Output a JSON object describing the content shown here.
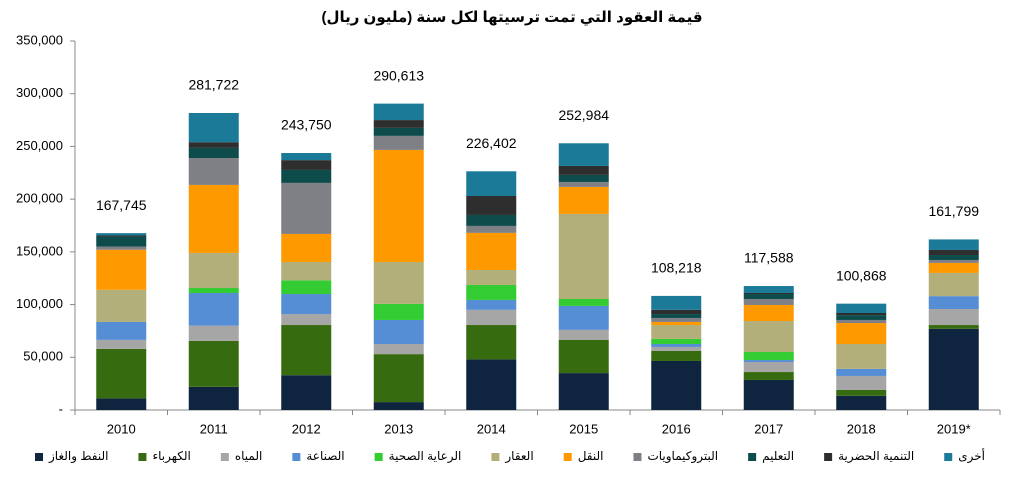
{
  "chart_data": {
    "type": "stacked_bar",
    "title": "قيمة العقود التي تمت ترسيتها لكل سنة (مليون ريال)",
    "categories": [
      "2010",
      "2011",
      "2012",
      "2013",
      "2014",
      "2015",
      "2016",
      "2017",
      "2018",
      "2019*"
    ],
    "ylim": [
      0,
      350000
    ],
    "yticks": [
      {
        "value": 0,
        "label": "-"
      },
      {
        "value": 50000,
        "label": "50,000"
      },
      {
        "value": 100000,
        "label": "100,000"
      },
      {
        "value": 150000,
        "label": "150,000"
      },
      {
        "value": 200000,
        "label": "200,000"
      },
      {
        "value": 250000,
        "label": "250,000"
      },
      {
        "value": 300000,
        "label": "300,000"
      },
      {
        "value": 350000,
        "label": "350,000"
      }
    ],
    "grid": false,
    "legend": "bottom",
    "totals": [
      167745,
      281722,
      243750,
      290613,
      226402,
      252984,
      108218,
      117588,
      100868,
      161799
    ],
    "total_labels": [
      "167,745",
      "281,722",
      "243,750",
      "290,613",
      "226,402",
      "252,984",
      "108,218",
      "117,588",
      "100,868",
      "161,799"
    ],
    "series": [
      {
        "name": "النفط والغاز",
        "color": "#0f243e",
        "values": [
          11000,
          22000,
          33000,
          7500,
          48000,
          35000,
          46500,
          28500,
          13500,
          77000
        ]
      },
      {
        "name": "الكهرباء",
        "color": "#376b0f",
        "values": [
          47000,
          43500,
          47600,
          45500,
          32600,
          31400,
          9500,
          7500,
          5500,
          3600
        ]
      },
      {
        "name": "المياه",
        "color": "#a6a6a6",
        "values": [
          8500,
          14500,
          10400,
          9600,
          14400,
          9600,
          3800,
          9500,
          13300,
          15200
        ]
      },
      {
        "name": "الصناعة",
        "color": "#558ed5",
        "values": [
          17000,
          31000,
          19000,
          22800,
          9400,
          22700,
          2800,
          1900,
          6700,
          12200
        ]
      },
      {
        "name": "الرعاية الصحية",
        "color": "#33cc33",
        "values": [
          0,
          4700,
          13000,
          15200,
          14200,
          6600,
          4800,
          7600,
          0,
          0
        ]
      },
      {
        "name": "العقار",
        "color": "#b3af7a",
        "values": [
          30500,
          33300,
          17400,
          39800,
          14200,
          80700,
          13200,
          29400,
          23600,
          22000
        ]
      },
      {
        "name": "النقل",
        "color": "#ff9900",
        "values": [
          38000,
          64500,
          26600,
          106300,
          35200,
          25600,
          2900,
          15200,
          19900,
          9500
        ]
      },
      {
        "name": "البتروكيماويات",
        "color": "#7f7f86",
        "values": [
          3000,
          25500,
          48400,
          13300,
          6600,
          4700,
          3800,
          5700,
          2900,
          2800
        ]
      },
      {
        "name": "التعليم",
        "color": "#0e4c4c",
        "values": [
          9500,
          9600,
          12300,
          7600,
          10400,
          6700,
          3700,
          4700,
          4600,
          4700
        ]
      },
      {
        "name": "التنمية الحضرية",
        "color": "#2e2e2e",
        "values": [
          1000,
          5400,
          9300,
          7400,
          18000,
          8500,
          4000,
          1000,
          2000,
          4800
        ]
      },
      {
        "name": "أخرى",
        "color": "#1a7a98",
        "values": [
          2245,
          27722,
          6750,
          15613,
          23402,
          21484,
          13218,
          6588,
          8868,
          9999
        ]
      }
    ]
  }
}
